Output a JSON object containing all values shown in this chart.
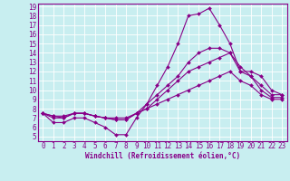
{
  "xlabel": "Windchill (Refroidissement éolien,°C)",
  "background_color": "#c8eef0",
  "line_color": "#880088",
  "grid_color": "#ffffff",
  "ylim": [
    5,
    19
  ],
  "xlim": [
    -0.5,
    23.5
  ],
  "yticks": [
    5,
    6,
    7,
    8,
    9,
    10,
    11,
    12,
    13,
    14,
    15,
    16,
    17,
    18,
    19
  ],
  "xticks": [
    0,
    1,
    2,
    3,
    4,
    5,
    6,
    7,
    8,
    9,
    10,
    11,
    12,
    13,
    14,
    15,
    16,
    17,
    18,
    19,
    20,
    21,
    22,
    23
  ],
  "series": [
    [
      7.5,
      6.5,
      6.5,
      7.0,
      7.0,
      6.5,
      6.0,
      5.2,
      5.2,
      7.0,
      8.5,
      10.5,
      12.5,
      15.0,
      18.0,
      18.2,
      18.8,
      17.0,
      15.0,
      12.0,
      12.0,
      11.5,
      10.0,
      9.5
    ],
    [
      7.5,
      7.0,
      7.0,
      7.5,
      7.5,
      7.2,
      7.0,
      6.8,
      6.8,
      7.5,
      8.5,
      9.5,
      10.5,
      11.5,
      13.0,
      14.0,
      14.5,
      14.5,
      14.0,
      12.5,
      11.5,
      10.5,
      9.5,
      9.5
    ],
    [
      7.5,
      7.2,
      7.0,
      7.5,
      7.5,
      7.2,
      7.0,
      6.8,
      6.8,
      7.5,
      8.0,
      9.0,
      10.0,
      11.0,
      12.0,
      12.5,
      13.0,
      13.5,
      14.0,
      12.0,
      11.5,
      10.0,
      9.2,
      9.2
    ],
    [
      7.5,
      7.2,
      7.2,
      7.5,
      7.5,
      7.2,
      7.0,
      7.0,
      7.0,
      7.5,
      8.0,
      8.5,
      9.0,
      9.5,
      10.0,
      10.5,
      11.0,
      11.5,
      12.0,
      11.0,
      10.5,
      9.5,
      9.0,
      9.0
    ]
  ],
  "tick_fontsize": 5.5,
  "xlabel_fontsize": 5.5,
  "marker_size": 2.0,
  "line_width": 0.8
}
